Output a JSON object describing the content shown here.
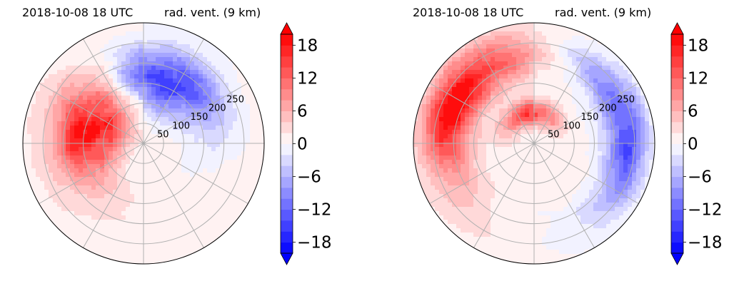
{
  "chart_data": [
    {
      "type": "heatmap",
      "projection": "polar",
      "timestamp": "2018-10-08 18 UTC",
      "title": "rad. vent. (9 km)",
      "radial_ticks": [
        50,
        100,
        150,
        200,
        250
      ],
      "radial_max": 300,
      "angular_gridlines_deg": [
        0,
        30,
        60,
        90,
        120,
        150,
        180,
        210,
        240,
        270,
        300,
        330
      ],
      "grid": true,
      "colorbar": {
        "ticks": [
          18,
          12,
          6,
          0,
          -6,
          -12,
          -18
        ],
        "tick_labels": [
          "18",
          "12",
          "6",
          "0",
          "−6",
          "−12",
          "−18"
        ],
        "vmin": -20,
        "vmax": 20,
        "levels": 20,
        "extend": "both",
        "colormap": "bwr"
      },
      "features": [
        {
          "sign": "positive",
          "center_az_deg": 290,
          "r_inner": 40,
          "r_outer": 240,
          "peak": 20
        },
        {
          "sign": "negative",
          "center_az_deg": 15,
          "r_inner": 80,
          "r_outer": 250,
          "peak": -18
        }
      ]
    },
    {
      "type": "heatmap",
      "projection": "polar",
      "timestamp": "2018-10-08 18 UTC",
      "title": "rad. vent. (9 km)",
      "radial_ticks": [
        50,
        100,
        150,
        200,
        250
      ],
      "radial_max": 300,
      "angular_gridlines_deg": [
        0,
        30,
        60,
        90,
        120,
        150,
        180,
        210,
        240,
        270,
        300,
        330
      ],
      "grid": true,
      "colorbar": {
        "ticks": [
          18,
          12,
          6,
          0,
          -6,
          -12,
          -18
        ],
        "tick_labels": [
          "18",
          "12",
          "6",
          "0",
          "−6",
          "−12",
          "−18"
        ],
        "vmin": -20,
        "vmax": 20,
        "levels": 20,
        "extend": "both",
        "colormap": "bwr"
      },
      "features": [
        {
          "sign": "positive",
          "center_az_deg": 300,
          "r_inner": 150,
          "r_outer": 290,
          "peak": 20
        },
        {
          "sign": "positive",
          "center_az_deg": 355,
          "r_inner": 40,
          "r_outer": 110,
          "peak": 16
        },
        {
          "sign": "negative",
          "center_az_deg": 80,
          "r_inner": 170,
          "r_outer": 290,
          "peak": -14
        }
      ]
    }
  ],
  "colors": {
    "timestamp": "#0000ff",
    "grid": "#b0b0b0",
    "ring": "#000000"
  }
}
